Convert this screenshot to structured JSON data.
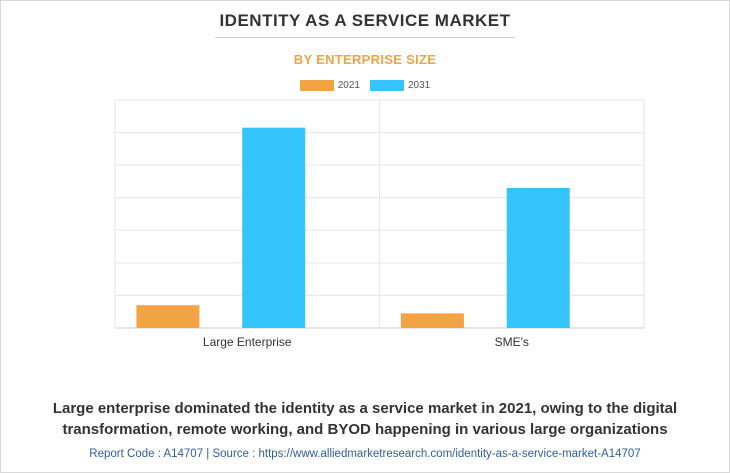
{
  "chart_data": {
    "type": "bar",
    "title": "IDENTITY AS A SERVICE MARKET",
    "subtitle": "BY ENTERPRISE SIZE",
    "categories": [
      "Large Enterprise",
      "SME's"
    ],
    "series": [
      {
        "name": "2021",
        "color": "#f2a444",
        "values": [
          0.7,
          0.45
        ]
      },
      {
        "name": "2031",
        "color": "#33c5fb",
        "values": [
          6.15,
          4.3
        ]
      }
    ],
    "ylim": [
      0,
      7
    ],
    "grid": true,
    "legend": "top-center"
  },
  "caption": "Large enterprise dominated the identity as a service market in 2021, owing to the digital transformation, remote working, and BYOD happening in various large organizations",
  "footer": "Report Code : A14707  |  Source : https://www.alliedmarketresearch.com/identity-as-a-service-market-A14707"
}
